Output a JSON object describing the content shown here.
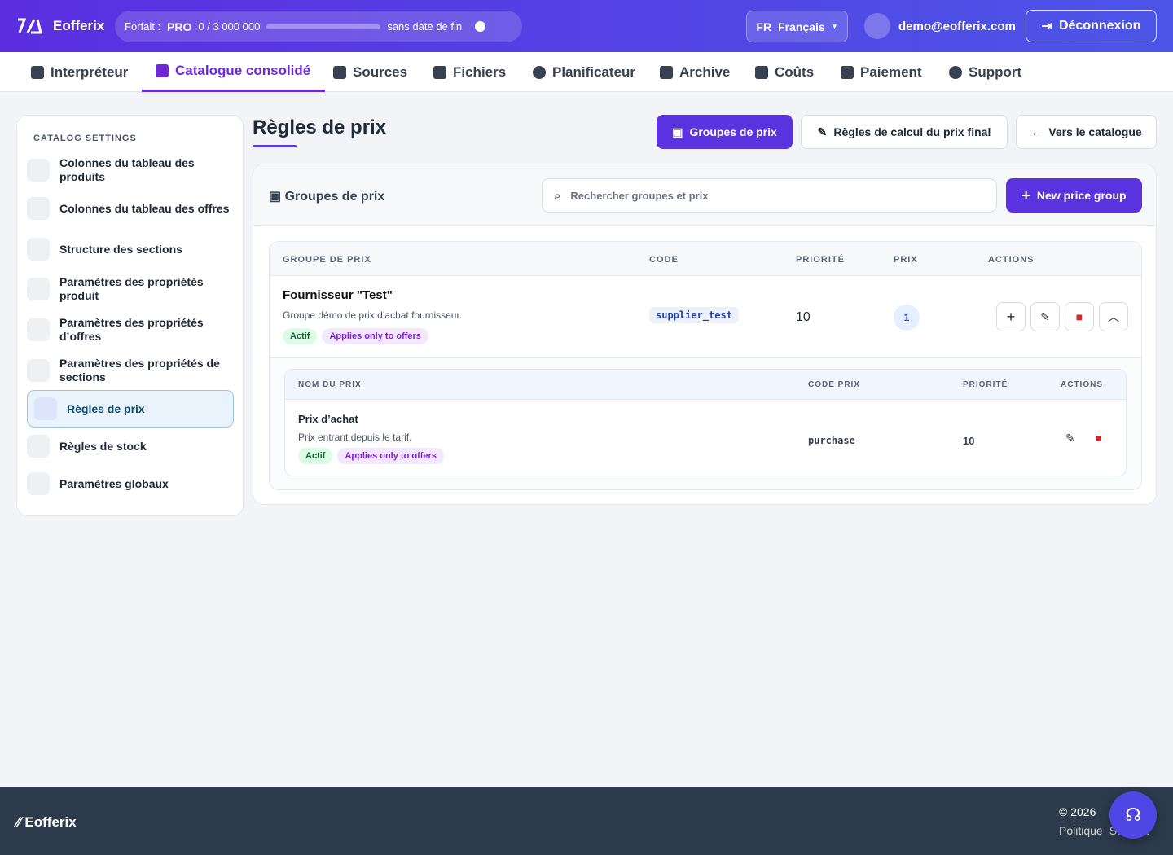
{
  "header": {
    "brand": "Eofferix",
    "plan_label": "Forfait :",
    "plan": "PRO",
    "usage": "0 / 3 000 000",
    "validity": "sans date de fin",
    "lang_code": "FR",
    "lang": "Français",
    "user": "demo@eofferix.com",
    "logout": "Déconnexion"
  },
  "nav": [
    "Interpréteur",
    "Catalogue consolidé",
    "Sources",
    "Fichiers",
    "Planificateur",
    "Archive",
    "Coûts",
    "Paiement",
    "Support"
  ],
  "sidebar": {
    "title": "CATALOG SETTINGS",
    "items": [
      "Colonnes du tableau des produits",
      "Colonnes du tableau des offres",
      "Structure des sections",
      "Paramètres des propriétés produit",
      "Paramètres des propriétés d’offres",
      "Paramètres des propriétés de sections",
      "Règles de prix",
      "Règles de stock",
      "Paramètres globaux"
    ]
  },
  "page": {
    "title": "Règles de prix",
    "tabs": [
      "Groupes de prix",
      "Règles de calcul du prix final",
      "Vers le catalogue"
    ]
  },
  "panel": {
    "title": "Groupes de prix",
    "search_placeholder": "Rechercher groupes et prix",
    "new_button": "New price group",
    "columns": [
      "GROUPE DE PRIX",
      "CODE",
      "PRIORITÉ",
      "PRIX",
      "ACTIONS"
    ],
    "group": {
      "name": "Fournisseur \"Test\"",
      "description": "Groupe démo de prix d’achat fournisseur.",
      "badges": [
        "Actif",
        "Applies only to offers"
      ],
      "code": "supplier_test",
      "priority": 10,
      "price_count": 1
    },
    "prices": {
      "columns": [
        "NOM DU PRIX",
        "CODE PRIX",
        "PRIORITÉ",
        "ACTIONS"
      ],
      "rows": [
        {
          "name": "Prix d’achat",
          "description": "Prix entrant depuis le tarif.",
          "badges": [
            "Actif",
            "Applies only to offers"
          ],
          "code": "purchase",
          "priority": 10
        }
      ]
    }
  },
  "footer": {
    "brand": "Eofferix",
    "copyright": "© 2026",
    "links": [
      "Politique",
      "Support"
    ]
  }
}
